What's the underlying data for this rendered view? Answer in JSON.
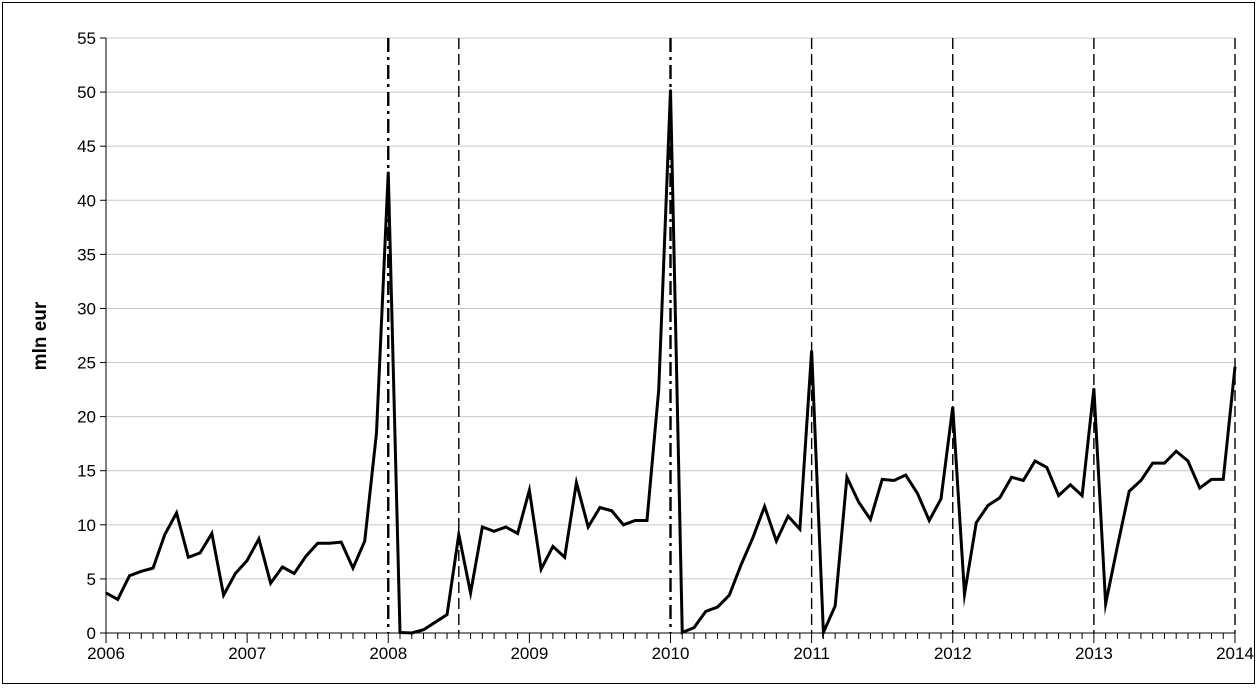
{
  "chart_data": {
    "type": "line",
    "title": "",
    "xlabel": "",
    "ylabel": "mln eur",
    "ylim": [
      0,
      55
    ],
    "yticks": [
      0,
      5,
      10,
      15,
      20,
      25,
      30,
      35,
      40,
      45,
      50,
      55
    ],
    "xlim": [
      "2006-01",
      "2014-01"
    ],
    "x_tick_labels": [
      "2006",
      "2007",
      "2008",
      "2009",
      "2010",
      "2011",
      "2012",
      "2013",
      "2014"
    ],
    "grid": {
      "horizontal": true,
      "vertical": false
    },
    "legend": "none",
    "line_color": "#000000",
    "vertical_markers": [
      "2008-01",
      "2008-07",
      "2010-01",
      "2011-01",
      "2012-01",
      "2013-01",
      "2014-01"
    ],
    "series": [
      {
        "x": [
          "2006-01",
          "2006-02",
          "2006-03",
          "2006-04",
          "2006-05",
          "2006-06",
          "2006-07",
          "2006-08",
          "2006-09",
          "2006-10",
          "2006-11",
          "2006-12",
          "2007-01",
          "2007-02",
          "2007-03",
          "2007-04",
          "2007-05",
          "2007-06",
          "2007-07",
          "2007-08",
          "2007-09",
          "2007-10",
          "2007-11",
          "2007-12",
          "2008-01",
          "2008-02",
          "2008-03",
          "2008-04",
          "2008-05",
          "2008-06",
          "2008-07",
          "2008-08",
          "2008-09",
          "2008-10",
          "2008-11",
          "2008-12",
          "2009-01",
          "2009-02",
          "2009-03",
          "2009-04",
          "2009-05",
          "2009-06",
          "2009-07",
          "2009-08",
          "2009-09",
          "2009-10",
          "2009-11",
          "2009-12",
          "2010-01",
          "2010-02",
          "2010-03",
          "2010-04",
          "2010-05",
          "2010-06",
          "2010-07",
          "2010-08",
          "2010-09",
          "2010-10",
          "2010-11",
          "2010-12",
          "2011-01",
          "2011-02",
          "2011-03",
          "2011-04",
          "2011-05",
          "2011-06",
          "2011-07",
          "2011-08",
          "2011-09",
          "2011-10",
          "2011-11",
          "2011-12",
          "2012-01",
          "2012-02",
          "2012-03",
          "2012-04",
          "2012-05",
          "2012-06",
          "2012-07",
          "2012-08",
          "2012-09",
          "2012-10",
          "2012-11",
          "2012-12",
          "2013-01",
          "2013-02",
          "2013-03",
          "2013-04",
          "2013-05",
          "2013-06",
          "2013-07",
          "2013-08",
          "2013-09",
          "2013-10",
          "2013-11",
          "2013-12",
          "2014-01"
        ],
        "values": [
          3.7,
          3.1,
          5.3,
          5.7,
          6.0,
          9.1,
          11.1,
          7.0,
          7.4,
          9.2,
          3.5,
          5.5,
          6.7,
          8.7,
          4.6,
          6.1,
          5.5,
          7.1,
          8.3,
          8.3,
          8.4,
          6.0,
          8.5,
          18.5,
          42.6,
          0.05,
          0.0,
          0.3,
          1.0,
          1.7,
          9.1,
          3.7,
          9.8,
          9.4,
          9.8,
          9.2,
          13.2,
          5.9,
          8.0,
          7.0,
          13.9,
          9.8,
          11.6,
          11.3,
          10.0,
          10.4,
          10.4,
          22.5,
          50.2,
          0.05,
          0.5,
          2.0,
          2.4,
          3.5,
          6.3,
          8.8,
          11.7,
          8.5,
          10.8,
          9.6,
          26.1,
          0.05,
          2.5,
          14.4,
          12.1,
          10.5,
          14.2,
          14.1,
          14.6,
          12.9,
          10.4,
          12.4,
          20.9,
          3.6,
          10.2,
          11.8,
          12.5,
          14.4,
          14.1,
          15.9,
          15.3,
          12.7,
          13.7,
          12.7,
          22.6,
          2.7,
          8.0,
          13.1,
          14.1,
          15.7,
          15.7,
          16.8,
          15.9,
          13.4,
          14.2,
          14.2,
          24.6
        ]
      }
    ]
  }
}
